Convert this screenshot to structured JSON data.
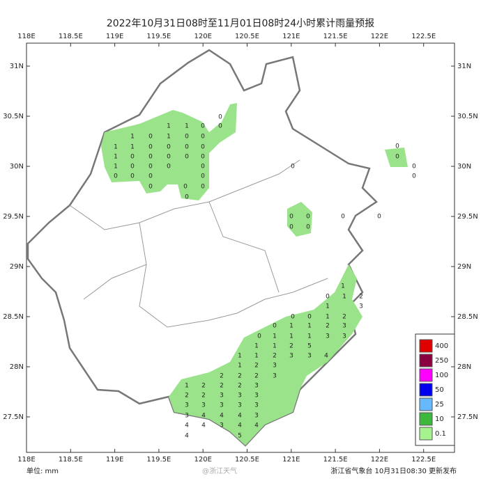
{
  "map_data": {
    "title": "2022年10月31日08时至11月01日08时24小时累计雨量预报",
    "lon_ticks": [
      {
        "value": 118,
        "label": "118E"
      },
      {
        "value": 118.5,
        "label": "118.5E"
      },
      {
        "value": 119,
        "label": "119E"
      },
      {
        "value": 119.5,
        "label": "119.5E"
      },
      {
        "value": 120,
        "label": "120E"
      },
      {
        "value": 120.5,
        "label": "120.5E"
      },
      {
        "value": 121,
        "label": "121E"
      },
      {
        "value": 121.5,
        "label": "121.5E"
      },
      {
        "value": 122,
        "label": "122E"
      },
      {
        "value": 122.5,
        "label": "122.5E"
      }
    ],
    "lat_ticks": [
      {
        "value": 31,
        "label": "31N"
      },
      {
        "value": 30.5,
        "label": "30.5N"
      },
      {
        "value": 30,
        "label": "30N"
      },
      {
        "value": 29.5,
        "label": "29.5N"
      },
      {
        "value": 29,
        "label": "29N"
      },
      {
        "value": 28.5,
        "label": "28.5N"
      },
      {
        "value": 28,
        "label": "28N"
      },
      {
        "value": 27.5,
        "label": "27.5N"
      }
    ],
    "legend": [
      {
        "value": 400,
        "color": "#e00000"
      },
      {
        "value": 250,
        "color": "#8b0040"
      },
      {
        "value": 100,
        "color": "#ff00ff"
      },
      {
        "value": 50,
        "color": "#0000ee"
      },
      {
        "value": 25,
        "color": "#66b8ff"
      },
      {
        "value": 10,
        "color": "#3cb93c"
      },
      {
        "value": 0.1,
        "color": "#a6f28f"
      }
    ],
    "stations": [
      1,
      0,
      1,
      1,
      0,
      0,
      0,
      1,
      1,
      0,
      1,
      0,
      0,
      1,
      0,
      0,
      0,
      0,
      0,
      1,
      0,
      0,
      0,
      0,
      0,
      0,
      0,
      0,
      0,
      0,
      0,
      0,
      0,
      0,
      0,
      0,
      0,
      0,
      0,
      0,
      0,
      0,
      0,
      0,
      0,
      0,
      1,
      0,
      1,
      2,
      3,
      1,
      0,
      1,
      2,
      0,
      0,
      1,
      1,
      2,
      3,
      0,
      1,
      1,
      1,
      3,
      3,
      1,
      1,
      2,
      5,
      1,
      1,
      2,
      3,
      3,
      4,
      1,
      2,
      3,
      2,
      2,
      2,
      3,
      1,
      2,
      2,
      2,
      3,
      2,
      2,
      3,
      3,
      3,
      3,
      3,
      3,
      3,
      3,
      3,
      4,
      4,
      4,
      3,
      4,
      4,
      3,
      4,
      4,
      4,
      5
    ],
    "unit": "单位: mm",
    "watermark": "@浙江天气",
    "footer": "浙江省气象台 10月31日08:30 更新发布"
  }
}
